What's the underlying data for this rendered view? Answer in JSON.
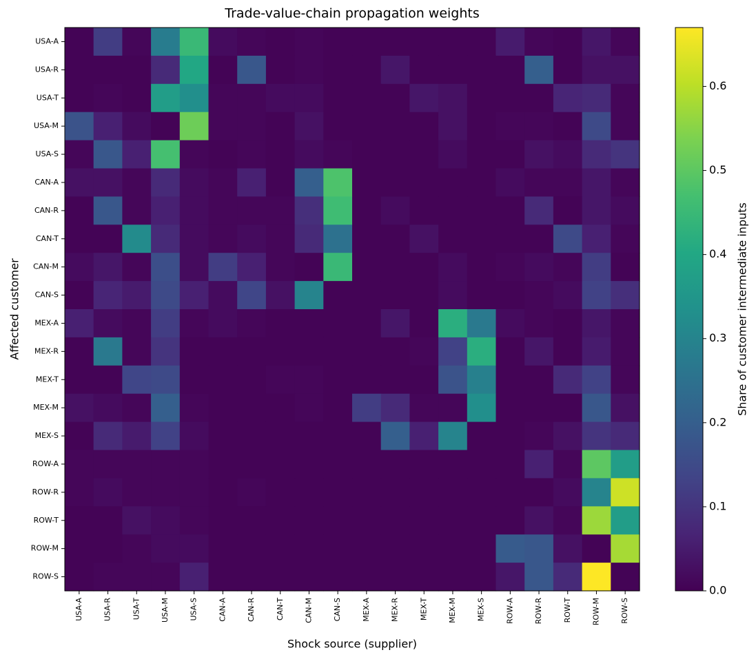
{
  "chart_data": {
    "type": "heatmap",
    "title": "Trade-value-chain propagation weights",
    "x_label": "Shock source (supplier)",
    "y_label": "Affected customer",
    "colorbar_label": "Share of customer intermediate inputs",
    "colormap": "viridis",
    "clim": [
      0,
      0.67
    ],
    "cticks": [
      {
        "value": 0,
        "label": "0.0"
      },
      {
        "value": 0.1,
        "label": "0.1"
      },
      {
        "value": 0.2,
        "label": "0.2"
      },
      {
        "value": 0.3,
        "label": "0.3"
      },
      {
        "value": 0.4,
        "label": "0.4"
      },
      {
        "value": 0.5,
        "label": "0.5"
      },
      {
        "value": 0.6,
        "label": "0.6"
      }
    ],
    "x_categories": [
      "USA-A",
      "USA-R",
      "USA-T",
      "USA-M",
      "USA-S",
      "CAN-A",
      "CAN-R",
      "CAN-T",
      "CAN-M",
      "CAN-S",
      "MEX-A",
      "MEX-R",
      "MEX-T",
      "MEX-M",
      "MEX-S",
      "ROW-A",
      "ROW-R",
      "ROW-T",
      "ROW-M",
      "ROW-S"
    ],
    "y_categories": [
      "USA-A",
      "USA-R",
      "USA-T",
      "USA-M",
      "USA-S",
      "CAN-A",
      "CAN-R",
      "CAN-T",
      "CAN-M",
      "CAN-S",
      "MEX-A",
      "MEX-R",
      "MEX-T",
      "MEX-M",
      "MEX-S",
      "ROW-A",
      "ROW-R",
      "ROW-T",
      "ROW-M",
      "ROW-S"
    ],
    "values": [
      [
        0.005,
        0.12,
        0.01,
        0.28,
        0.45,
        0.02,
        0.01,
        0.005,
        0.01,
        0.005,
        0.005,
        0.005,
        0.005,
        0.005,
        0.005,
        0.05,
        0.01,
        0.005,
        0.04,
        0.01
      ],
      [
        0.005,
        0.005,
        0.005,
        0.08,
        0.4,
        0.005,
        0.18,
        0.005,
        0.01,
        0.005,
        0.005,
        0.04,
        0.005,
        0.005,
        0.005,
        0.005,
        0.2,
        0.005,
        0.03,
        0.03
      ],
      [
        0.005,
        0.01,
        0.005,
        0.37,
        0.33,
        0.01,
        0.01,
        0.02,
        0.02,
        0.005,
        0.005,
        0.005,
        0.04,
        0.03,
        0.005,
        0.005,
        0.005,
        0.07,
        0.08,
        0.01
      ],
      [
        0.17,
        0.06,
        0.02,
        0.005,
        0.52,
        0.01,
        0.01,
        0.005,
        0.03,
        0.005,
        0.005,
        0.005,
        0.005,
        0.03,
        0.005,
        0.01,
        0.01,
        0.005,
        0.15,
        0.01
      ],
      [
        0.01,
        0.18,
        0.06,
        0.47,
        0.01,
        0.005,
        0.01,
        0.005,
        0.02,
        0.01,
        0.005,
        0.005,
        0.005,
        0.02,
        0.005,
        0.005,
        0.03,
        0.02,
        0.08,
        0.1
      ],
      [
        0.03,
        0.03,
        0.01,
        0.08,
        0.02,
        0.01,
        0.06,
        0.005,
        0.2,
        0.48,
        0.005,
        0.005,
        0.005,
        0.005,
        0.005,
        0.02,
        0.01,
        0.01,
        0.04,
        0.01
      ],
      [
        0.005,
        0.18,
        0.01,
        0.06,
        0.02,
        0.01,
        0.01,
        0.01,
        0.09,
        0.46,
        0.005,
        0.02,
        0.005,
        0.005,
        0.005,
        0.005,
        0.08,
        0.005,
        0.04,
        0.02
      ],
      [
        0.005,
        0.005,
        0.32,
        0.08,
        0.02,
        0.01,
        0.02,
        0.01,
        0.08,
        0.25,
        0.005,
        0.005,
        0.03,
        0.005,
        0.005,
        0.005,
        0.005,
        0.15,
        0.06,
        0.01
      ],
      [
        0.02,
        0.04,
        0.01,
        0.16,
        0.02,
        0.12,
        0.06,
        0.01,
        0.005,
        0.45,
        0.005,
        0.005,
        0.005,
        0.02,
        0.005,
        0.01,
        0.02,
        0.01,
        0.12,
        0.005
      ],
      [
        0.005,
        0.07,
        0.05,
        0.15,
        0.06,
        0.02,
        0.14,
        0.03,
        0.3,
        0.005,
        0.005,
        0.005,
        0.005,
        0.02,
        0.005,
        0.005,
        0.01,
        0.02,
        0.13,
        0.09
      ],
      [
        0.06,
        0.02,
        0.01,
        0.12,
        0.01,
        0.02,
        0.01,
        0.005,
        0.005,
        0.005,
        0.005,
        0.04,
        0.005,
        0.42,
        0.27,
        0.02,
        0.01,
        0.005,
        0.04,
        0.01
      ],
      [
        0.005,
        0.27,
        0.01,
        0.1,
        0.005,
        0.005,
        0.005,
        0.005,
        0.005,
        0.005,
        0.005,
        0.005,
        0.01,
        0.13,
        0.42,
        0.005,
        0.04,
        0.005,
        0.05,
        0.01
      ],
      [
        0.005,
        0.005,
        0.14,
        0.15,
        0.005,
        0.005,
        0.005,
        0.01,
        0.01,
        0.005,
        0.005,
        0.005,
        0.005,
        0.17,
        0.29,
        0.005,
        0.005,
        0.08,
        0.13,
        0.01
      ],
      [
        0.03,
        0.02,
        0.01,
        0.2,
        0.01,
        0.005,
        0.005,
        0.005,
        0.01,
        0.005,
        0.12,
        0.08,
        0.01,
        0.01,
        0.33,
        0.005,
        0.005,
        0.005,
        0.18,
        0.03
      ],
      [
        0.005,
        0.08,
        0.05,
        0.13,
        0.02,
        0.005,
        0.005,
        0.005,
        0.005,
        0.005,
        0.005,
        0.2,
        0.06,
        0.3,
        0.005,
        0.005,
        0.01,
        0.03,
        0.1,
        0.08
      ],
      [
        0.01,
        0.01,
        0.01,
        0.01,
        0.01,
        0.005,
        0.005,
        0.005,
        0.005,
        0.005,
        0.005,
        0.005,
        0.005,
        0.005,
        0.005,
        0.005,
        0.06,
        0.01,
        0.5,
        0.37
      ],
      [
        0.01,
        0.02,
        0.01,
        0.01,
        0.01,
        0.005,
        0.01,
        0.005,
        0.005,
        0.005,
        0.005,
        0.005,
        0.005,
        0.005,
        0.005,
        0.005,
        0.005,
        0.02,
        0.3,
        0.62
      ],
      [
        0.005,
        0.005,
        0.03,
        0.02,
        0.01,
        0.005,
        0.005,
        0.005,
        0.005,
        0.005,
        0.005,
        0.005,
        0.005,
        0.005,
        0.005,
        0.005,
        0.03,
        0.01,
        0.57,
        0.37
      ],
      [
        0.005,
        0.005,
        0.01,
        0.02,
        0.02,
        0.005,
        0.005,
        0.005,
        0.005,
        0.005,
        0.005,
        0.005,
        0.005,
        0.005,
        0.005,
        0.19,
        0.18,
        0.03,
        0.005,
        0.58
      ],
      [
        0.005,
        0.01,
        0.01,
        0.01,
        0.06,
        0.005,
        0.005,
        0.005,
        0.005,
        0.005,
        0.005,
        0.005,
        0.005,
        0.005,
        0.005,
        0.04,
        0.18,
        0.08,
        0.67,
        0.005
      ]
    ]
  }
}
